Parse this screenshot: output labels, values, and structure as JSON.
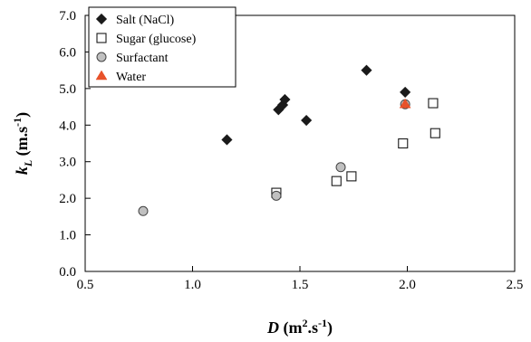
{
  "chart_data": {
    "type": "scatter",
    "title": "",
    "xlabel": {
      "var": "D",
      "text": " (m",
      "sup": "2",
      "rest": ".s",
      "sup2": "-1",
      "close": ")"
    },
    "ylabel": {
      "var": "k",
      "sub": "L",
      "text": " (m.s",
      "sup": "-1",
      "close": ")"
    },
    "xlim": [
      0.5,
      2.5
    ],
    "ylim": [
      0.0,
      7.0
    ],
    "x_ticks": [
      "0.5",
      "1.0",
      "1.5",
      "2.0",
      "2.5"
    ],
    "y_ticks": [
      "0.0",
      "1.0",
      "2.0",
      "3.0",
      "4.0",
      "5.0",
      "6.0",
      "7.0"
    ],
    "legend_position": "top-left",
    "grid": false,
    "series": [
      {
        "name": "Salt (NaCl)",
        "marker": "diamond",
        "color": "#1a1a1a",
        "points": [
          [
            1.16,
            3.6
          ],
          [
            1.4,
            4.42
          ],
          [
            1.42,
            4.55
          ],
          [
            1.43,
            4.7
          ],
          [
            1.53,
            4.13
          ],
          [
            1.81,
            5.5
          ],
          [
            1.99,
            4.9
          ]
        ]
      },
      {
        "name": "Sugar (glucose)",
        "marker": "square-open",
        "color": "#1a1a1a",
        "points": [
          [
            1.39,
            2.15
          ],
          [
            1.67,
            2.47
          ],
          [
            1.74,
            2.6
          ],
          [
            1.98,
            3.5
          ],
          [
            2.12,
            4.6
          ],
          [
            2.13,
            3.78
          ]
        ]
      },
      {
        "name": "Surfactant",
        "marker": "circle",
        "color": "#c0c0c0",
        "points": [
          [
            0.77,
            1.65
          ],
          [
            1.39,
            2.07
          ],
          [
            1.69,
            2.85
          ],
          [
            1.99,
            4.57
          ]
        ]
      },
      {
        "name": "Water",
        "marker": "triangle",
        "color": "#e8522a",
        "points": [
          [
            1.99,
            4.57
          ]
        ]
      }
    ]
  }
}
